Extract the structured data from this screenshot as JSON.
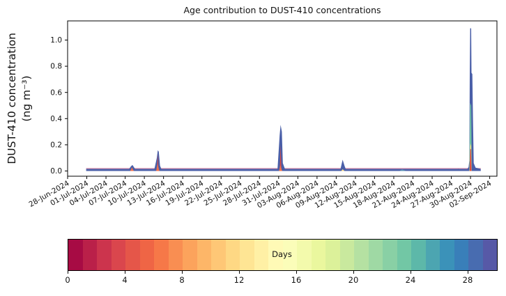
{
  "title": "Age contribution to DUST-410 concentrations",
  "chart_data": {
    "type": "area",
    "title": "Age contribution to DUST-410 concentrations",
    "ylabel": "DUST-410 concentration (ng m⁻³)",
    "ylabel_lines": [
      "DUST-410 concentration",
      "(ng m⁻³)"
    ],
    "xlabel": "",
    "grid": false,
    "legend": "colorbar-bottom",
    "ylim": [
      -0.04,
      1.145
    ],
    "y_ticks": [
      0.0,
      0.2,
      0.4,
      0.6,
      0.8,
      1.0
    ],
    "x_tick_interval_days": 3,
    "x_tick_labels": [
      "28-Jun-2024",
      "01-Jul-2024",
      "04-Jul-2024",
      "07-Jul-2024",
      "10-Jul-2024",
      "13-Jul-2024",
      "16-Jul-2024",
      "19-Jul-2024",
      "22-Jul-2024",
      "25-Jul-2024",
      "28-Jul-2024",
      "31-Jul-2024",
      "03-Aug-2024",
      "06-Aug-2024",
      "09-Aug-2024",
      "12-Aug-2024",
      "15-Aug-2024",
      "18-Aug-2024",
      "21-Aug-2024",
      "24-Aug-2024",
      "27-Aug-2024",
      "30-Aug-2024",
      "02-Sep-2024"
    ],
    "baseline": {
      "start_day": 2.9,
      "end_day": 64.6,
      "height": 0.016,
      "fill_color": "#4a5fa8",
      "edge_color": "#dfa0b8"
    },
    "spikes": [
      {
        "date": "08-Jul-2024",
        "peak": 0.046,
        "layers": [
          {
            "color": "#4a5fa8",
            "points": [
              [
                9.4,
                0
              ],
              [
                9.9,
                0.035
              ],
              [
                10.15,
                0.046
              ],
              [
                10.5,
                0.02
              ],
              [
                10.8,
                0
              ]
            ]
          },
          {
            "color": "#f0714b",
            "points": [
              [
                9.8,
                0
              ],
              [
                10.05,
                0.028
              ],
              [
                10.35,
                0
              ]
            ]
          }
        ]
      },
      {
        "date": "12-Jul-2024",
        "peak": 0.158,
        "layers": [
          {
            "color": "#4a5fa8",
            "points": [
              [
                13.5,
                0
              ],
              [
                13.95,
                0.1
              ],
              [
                14.1,
                0.158
              ],
              [
                14.25,
                0.148
              ],
              [
                14.45,
                0.04
              ],
              [
                14.8,
                0
              ]
            ]
          },
          {
            "color": "#dc4840",
            "points": [
              [
                13.98,
                0
              ],
              [
                14.1,
                0.128
              ],
              [
                14.22,
                0
              ]
            ]
          },
          {
            "color": "#f0714b",
            "points": [
              [
                13.85,
                0
              ],
              [
                14.05,
                0.055
              ],
              [
                14.35,
                0
              ]
            ]
          }
        ]
      },
      {
        "date": "23-Jul-2024",
        "peak": 0.01,
        "layers": [
          {
            "color": "#4a5fa8",
            "points": [
              [
                25.1,
                0
              ],
              [
                25.35,
                0.01
              ],
              [
                25.6,
                0
              ]
            ]
          }
        ]
      },
      {
        "date": "29-Jul-2024",
        "peak": 0.016,
        "layers": [
          {
            "color": "#4a5fa8",
            "points": [
              [
                31.3,
                0
              ],
              [
                31.6,
                0.016
              ],
              [
                31.9,
                0
              ]
            ]
          }
        ]
      },
      {
        "date": "31-Jul-2024",
        "peak": 0.352,
        "layers": [
          {
            "color": "#4a5fa8",
            "points": [
              [
                32.8,
                0
              ],
              [
                33.15,
                0.27
              ],
              [
                33.3,
                0.352
              ],
              [
                33.5,
                0.3
              ],
              [
                33.65,
                0.06
              ],
              [
                34.1,
                0
              ]
            ]
          },
          {
            "color": "#dc4840",
            "points": [
              [
                33.17,
                0
              ],
              [
                33.3,
                0.2
              ],
              [
                33.43,
                0
              ]
            ]
          },
          {
            "color": "#f0714b",
            "points": [
              [
                33.05,
                0
              ],
              [
                33.25,
                0.045
              ],
              [
                33.55,
                0
              ]
            ]
          }
        ]
      },
      {
        "date": "10-Aug-2024",
        "peak": 0.086,
        "layers": [
          {
            "color": "#4a5fa8",
            "points": [
              [
                42.6,
                0
              ],
              [
                43.0,
                0.086
              ],
              [
                43.3,
                0.04
              ],
              [
                43.6,
                0
              ]
            ]
          },
          {
            "color": "#fdd985",
            "points": [
              [
                42.8,
                0
              ],
              [
                43.0,
                0.014
              ],
              [
                43.3,
                0
              ]
            ]
          }
        ]
      },
      {
        "date": "19-Aug-2024",
        "peak": 0.012,
        "layers": [
          {
            "color": "#5b93b4",
            "points": [
              [
                51.9,
                0
              ],
              [
                52.3,
                0.012
              ],
              [
                52.9,
                0
              ]
            ]
          }
        ]
      },
      {
        "date": "28-Aug-2024",
        "peak": 0.018,
        "layers": [
          {
            "color": "#4a5fa8",
            "points": [
              [
                60.6,
                0
              ],
              [
                61.1,
                0.018
              ],
              [
                61.5,
                0
              ]
            ]
          }
        ]
      },
      {
        "date": "30-Aug-2024",
        "peak": 1.09,
        "layers": [
          {
            "color": "#4a5fa8",
            "points": [
              [
                62.3,
                0
              ],
              [
                62.7,
                0.03
              ],
              [
                62.82,
                0.08
              ],
              [
                62.88,
                0.74
              ],
              [
                62.95,
                1.09
              ],
              [
                63.1,
                1.09
              ],
              [
                63.15,
                0.75
              ],
              [
                63.28,
                0.74
              ],
              [
                63.38,
                0.4
              ],
              [
                63.5,
                0.06
              ],
              [
                63.8,
                0.025
              ],
              [
                64.55,
                0.016
              ],
              [
                64.58,
                0
              ]
            ]
          },
          {
            "color": "#6fc4a4",
            "points": [
              [
                62.8,
                0
              ],
              [
                62.95,
                0.52
              ],
              [
                63.1,
                0.5
              ],
              [
                63.2,
                0
              ]
            ]
          },
          {
            "color": "#fee08b",
            "points": [
              [
                62.85,
                0
              ],
              [
                62.97,
                0.21
              ],
              [
                63.1,
                0.19
              ],
              [
                63.17,
                0
              ]
            ]
          },
          {
            "color": "#e0493f",
            "points": [
              [
                62.87,
                0
              ],
              [
                62.96,
                0.17
              ],
              [
                63.08,
                0.165
              ],
              [
                63.15,
                0
              ]
            ]
          }
        ]
      }
    ],
    "colorbar": {
      "label": "Days",
      "vmin": 0,
      "vmax": 30,
      "n_bins": 30,
      "ticks": [
        0,
        4,
        8,
        12,
        16,
        20,
        24,
        28
      ],
      "spectral_anchors": [
        "#9e0142",
        "#d53e4f",
        "#f46d43",
        "#fdae61",
        "#fee08b",
        "#ffffbf",
        "#e6f598",
        "#abdda4",
        "#66c2a5",
        "#3288bd",
        "#5e4fa2"
      ]
    },
    "axis_color": "#000000"
  }
}
